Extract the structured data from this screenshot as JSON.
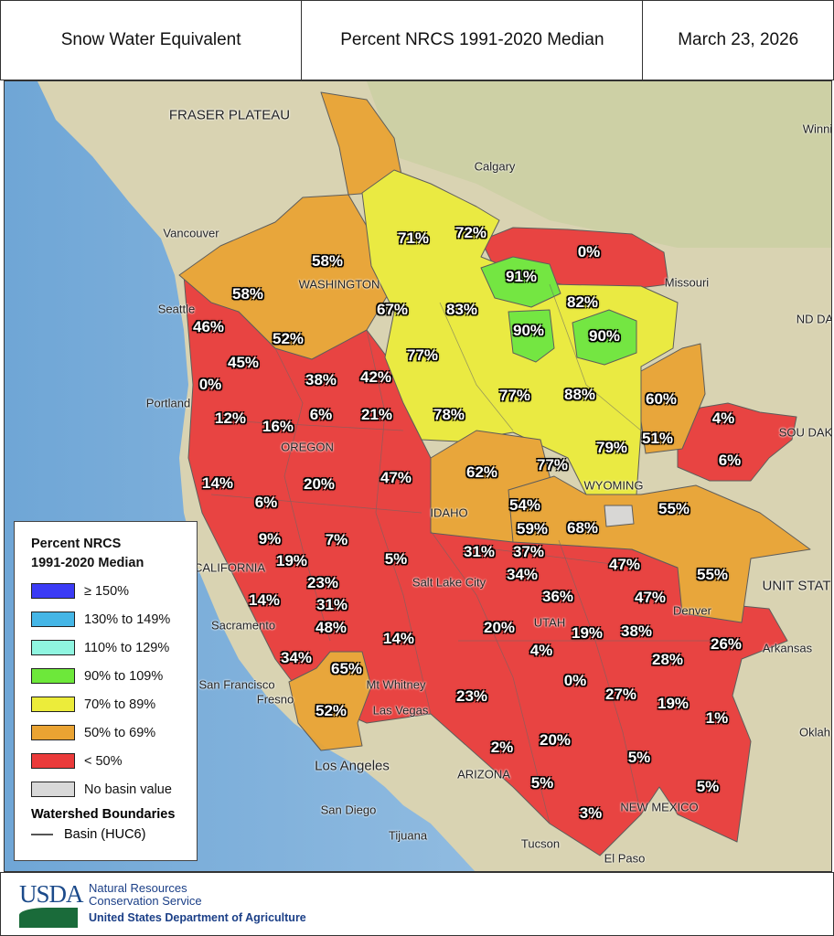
{
  "header": {
    "title": "Snow Water Equivalent",
    "subtitle": "Percent NRCS 1991-2020 Median",
    "date": "March 23, 2026"
  },
  "map": {
    "basin_values": [
      "71%",
      "72%",
      "0%",
      "58%",
      "58%",
      "91%",
      "82%",
      "67%",
      "83%",
      "46%",
      "90%",
      "90%",
      "52%",
      "77%",
      "45%",
      "0%",
      "38%",
      "42%",
      "77%",
      "88%",
      "60%",
      "12%",
      "16%",
      "6%",
      "21%",
      "78%",
      "4%",
      "79%",
      "51%",
      "6%",
      "14%",
      "20%",
      "47%",
      "62%",
      "77%",
      "6%",
      "54%",
      "55%",
      "9%",
      "7%",
      "59%",
      "68%",
      "19%",
      "31%",
      "37%",
      "5%",
      "47%",
      "55%",
      "23%",
      "34%",
      "14%",
      "31%",
      "36%",
      "47%",
      "48%",
      "20%",
      "19%",
      "38%",
      "14%",
      "4%",
      "26%",
      "34%",
      "65%",
      "28%",
      "0%",
      "23%",
      "27%",
      "19%",
      "52%",
      "1%",
      "2%",
      "20%",
      "5%",
      "5%",
      "5%",
      "3%"
    ],
    "places": [
      "FRASER PLATEAU",
      "Calgary",
      "Vancouver",
      "Seattle",
      "Portland",
      "OREGON",
      "WASHINGTON",
      "IDAHO",
      "CALIFORNIA",
      "Sacramento",
      "San Francisco",
      "Fresno",
      "Mt Whitney",
      "Las Vegas",
      "Los Angeles",
      "San Diego",
      "Tijuana",
      "Tucson",
      "El Paso",
      "Salt Lake City",
      "UTAH",
      "ARIZONA",
      "NEW MEXICO",
      "WYOMING",
      "Denver",
      "Missouri",
      "Arkansas",
      "Oklah",
      "Winni",
      "SOU DAK",
      "ND DA",
      "UNIT STAT"
    ]
  },
  "colors": {
    "ge150": "#3b3bf5",
    "c130_149": "#45b6e6",
    "c110_129": "#8ff5e0",
    "c90_109": "#6de83a",
    "c70_89": "#ecec3a",
    "c50_69": "#eaa332",
    "lt50": "#ea3a3a",
    "none": "#d8d8d8",
    "ocean": "#9cc3e3",
    "land": "#d9d3b2"
  },
  "legend": {
    "title_line1": "Percent NRCS",
    "title_line2": "1991-2020 Median",
    "items": [
      {
        "label": "≥ 150%",
        "color": "#3b3bf5"
      },
      {
        "label": "130% to 149%",
        "color": "#45b6e6"
      },
      {
        "label": "110% to 129%",
        "color": "#8ff5e0"
      },
      {
        "label": "90% to 109%",
        "color": "#6de83a"
      },
      {
        "label": "70% to 89%",
        "color": "#ecec3a"
      },
      {
        "label": "50% to 69%",
        "color": "#eaa332"
      },
      {
        "label": "< 50%",
        "color": "#ea3a3a"
      },
      {
        "label": "No basin value",
        "color": "#d8d8d8"
      }
    ],
    "boundaries_title": "Watershed Boundaries",
    "basin_label": "Basin (HUC6)"
  },
  "footer": {
    "logo": "USDA",
    "agency_line1": "Natural Resources",
    "agency_line2": "Conservation Service",
    "department": "United States Department of Agriculture"
  }
}
